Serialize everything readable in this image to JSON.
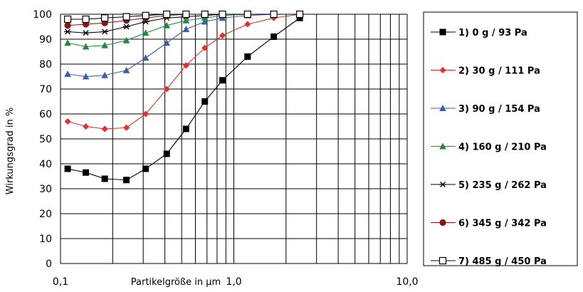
{
  "chart_data": {
    "type": "line",
    "xlabel": "Partikelgröße in µm",
    "ylabel": "Wirkungsgrad in %",
    "x_scale": "log",
    "xlim": [
      0.1,
      10.0
    ],
    "ylim": [
      0,
      100
    ],
    "x_ticks": [
      "0,1",
      "1,0",
      "10,0"
    ],
    "y_ticks": [
      "0",
      "10",
      "20",
      "30",
      "40",
      "50",
      "60",
      "70",
      "80",
      "90",
      "100"
    ],
    "grid": true,
    "legend_position": "right",
    "x": [
      0.11,
      0.14,
      0.18,
      0.24,
      0.31,
      0.41,
      0.53,
      0.68,
      0.86,
      1.2,
      1.7,
      2.4
    ],
    "series": [
      {
        "name": "1) 0 g / 93 Pa",
        "color": "#000000",
        "marker": "square-filled",
        "values": [
          38,
          36.5,
          34,
          33.5,
          38,
          44,
          54,
          65,
          73.5,
          83,
          91,
          98.5
        ]
      },
      {
        "name": "2) 30 g / 111 Pa",
        "color": "#ee2b24",
        "marker": "diamond-filled",
        "values": [
          57,
          55,
          54,
          54.5,
          60,
          70,
          79.5,
          86.5,
          91.5,
          96,
          98.5,
          100
        ]
      },
      {
        "name": "3) 90 g / 154 Pa",
        "color": "#3a5fb0",
        "marker": "triangle-filled",
        "values": [
          76,
          75,
          75.5,
          77.5,
          82.5,
          88.5,
          94,
          97,
          98.5,
          99.5,
          100,
          100
        ]
      },
      {
        "name": "4) 160 g / 210 Pa",
        "color": "#1e8a3a",
        "marker": "triangle-filled",
        "values": [
          88.5,
          87,
          87.5,
          89.5,
          92.5,
          95.5,
          97.5,
          98.5,
          99.5,
          100,
          100,
          100
        ]
      },
      {
        "name": "5) 235 g / 262 Pa",
        "color": "#000000",
        "marker": "star",
        "values": [
          93,
          92.5,
          93,
          95,
          97,
          98.5,
          99,
          99.5,
          100,
          100,
          100,
          100
        ]
      },
      {
        "name": "6) 345 g / 342 Pa",
        "color": "#8b1414",
        "marker": "circle-filled",
        "values": [
          95.5,
          96,
          96.5,
          97.5,
          98.5,
          99.5,
          100,
          100,
          100,
          100,
          100,
          100
        ]
      },
      {
        "name": "7) 485 g / 450 Pa",
        "color": "#000000",
        "marker": "square-open",
        "values": [
          98,
          98,
          98.5,
          99,
          99.5,
          100,
          100,
          100,
          100,
          100,
          100,
          100
        ]
      }
    ]
  }
}
